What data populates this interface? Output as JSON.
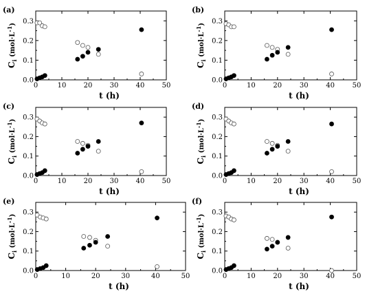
{
  "chart_data": [
    {
      "type": "scatter",
      "panel_label": "(a)",
      "xlabel": "t (h)",
      "ylabel_main": "C",
      "ylabel_sub": "i",
      "ylabel_unit": " (mol·L",
      "ylabel_exp": "-1",
      "ylabel_close": ")",
      "xlim": [
        0,
        50
      ],
      "ylim": [
        0,
        0.35
      ],
      "x_ticks": [
        "0",
        "10",
        "20",
        "30",
        "40",
        "50"
      ],
      "y_ticks": [
        "0.0",
        "0.1",
        "0.2",
        "0.3"
      ],
      "series": [
        {
          "marker": "open",
          "x": [
            0.5,
            1.5,
            2.5,
            3.5,
            16,
            18,
            20,
            24,
            40.5
          ],
          "y": [
            0.29,
            0.29,
            0.275,
            0.27,
            0.19,
            0.175,
            0.165,
            0.13,
            0.03
          ]
        },
        {
          "marker": "filled",
          "x": [
            0.5,
            1.5,
            2.5,
            3.5,
            16,
            18,
            20,
            24,
            40.5
          ],
          "y": [
            0.005,
            0.01,
            0.015,
            0.022,
            0.105,
            0.12,
            0.14,
            0.155,
            0.255
          ]
        }
      ]
    },
    {
      "type": "scatter",
      "panel_label": "(b)",
      "xlabel": "t (h)",
      "ylabel_main": "C",
      "ylabel_sub": "i",
      "ylabel_unit": " (mol·L",
      "ylabel_exp": "-1",
      "ylabel_close": ")",
      "xlim": [
        0,
        50
      ],
      "ylim": [
        0,
        0.35
      ],
      "x_ticks": [
        "0",
        "10",
        "20",
        "30",
        "40",
        "50"
      ],
      "y_ticks": [
        "0.0",
        "0.1",
        "0.2",
        "0.3"
      ],
      "series": [
        {
          "marker": "open",
          "x": [
            0.5,
            1.5,
            2.5,
            3.5,
            16,
            18,
            20,
            24,
            40.5
          ],
          "y": [
            0.285,
            0.28,
            0.27,
            0.27,
            0.175,
            0.165,
            0.155,
            0.13,
            0.03
          ]
        },
        {
          "marker": "filled",
          "x": [
            0.5,
            1.5,
            2.5,
            3.5,
            16,
            18,
            20,
            24,
            40.5
          ],
          "y": [
            0.005,
            0.01,
            0.015,
            0.022,
            0.105,
            0.125,
            0.14,
            0.165,
            0.255
          ]
        }
      ]
    },
    {
      "type": "scatter",
      "panel_label": "(c)",
      "xlabel": "t (h)",
      "ylabel_main": "C",
      "ylabel_sub": "i",
      "ylabel_unit": " (mol·L",
      "ylabel_exp": "-1",
      "ylabel_close": ")",
      "xlim": [
        0,
        50
      ],
      "ylim": [
        0,
        0.35
      ],
      "x_ticks": [
        "0",
        "10",
        "20",
        "30",
        "40",
        "50"
      ],
      "y_ticks": [
        "0.0",
        "0.1",
        "0.2",
        "0.3"
      ],
      "series": [
        {
          "marker": "open",
          "x": [
            0.5,
            1.5,
            2.5,
            3.5,
            16,
            18,
            20,
            24,
            40.5
          ],
          "y": [
            0.29,
            0.28,
            0.27,
            0.265,
            0.175,
            0.165,
            0.155,
            0.125,
            0.02
          ]
        },
        {
          "marker": "filled",
          "x": [
            0.5,
            1.5,
            2.5,
            3.5,
            16,
            18,
            20,
            24,
            40.5
          ],
          "y": [
            0.005,
            0.01,
            0.015,
            0.025,
            0.115,
            0.135,
            0.15,
            0.175,
            0.27
          ]
        }
      ]
    },
    {
      "type": "scatter",
      "panel_label": "(d)",
      "xlabel": "t (h)",
      "ylabel_main": "C",
      "ylabel_sub": "i",
      "ylabel_unit": " (mol·L",
      "ylabel_exp": "-1",
      "ylabel_close": ")",
      "xlim": [
        0,
        50
      ],
      "ylim": [
        0,
        0.35
      ],
      "x_ticks": [
        "0",
        "10",
        "20",
        "30",
        "40",
        "50"
      ],
      "y_ticks": [
        "0.0",
        "0.1",
        "0.2",
        "0.3"
      ],
      "series": [
        {
          "marker": "open",
          "x": [
            0.5,
            1.5,
            2.5,
            3.5,
            16,
            18,
            20,
            24,
            40.5
          ],
          "y": [
            0.29,
            0.28,
            0.27,
            0.265,
            0.175,
            0.165,
            0.155,
            0.125,
            0.02
          ]
        },
        {
          "marker": "filled",
          "x": [
            0.5,
            1.5,
            2.5,
            3.5,
            16,
            18,
            20,
            24,
            40.5
          ],
          "y": [
            0.005,
            0.01,
            0.015,
            0.025,
            0.115,
            0.135,
            0.15,
            0.175,
            0.265
          ]
        }
      ]
    },
    {
      "type": "scatter",
      "panel_label": "(e)",
      "xlabel": "t (h)",
      "ylabel_main": "C",
      "ylabel_sub": "i",
      "ylabel_unit": " (mol·L",
      "ylabel_exp": "-1",
      "ylabel_close": ")",
      "xlim": [
        0,
        50
      ],
      "ylim": [
        0,
        0.35
      ],
      "x_ticks": [
        "0",
        "10",
        "20",
        "30",
        "40",
        "50"
      ],
      "y_ticks": [
        "0.0",
        "0.1",
        "0.2",
        "0.3"
      ],
      "series": [
        {
          "marker": "open",
          "x": [
            0.5,
            1.5,
            2.5,
            3.5,
            16,
            18,
            20,
            24,
            40.5
          ],
          "y": [
            0.285,
            0.275,
            0.27,
            0.265,
            0.175,
            0.17,
            0.155,
            0.125,
            0.02
          ]
        },
        {
          "marker": "filled",
          "x": [
            0.5,
            1.5,
            2.5,
            3.5,
            16,
            18,
            20,
            24,
            40.5
          ],
          "y": [
            0.005,
            0.01,
            0.015,
            0.025,
            0.115,
            0.13,
            0.145,
            0.175,
            0.27
          ]
        }
      ]
    },
    {
      "type": "scatter",
      "panel_label": "(f)",
      "xlabel": "t (h)",
      "ylabel_main": "C",
      "ylabel_sub": "i",
      "ylabel_unit": " (mol·L",
      "ylabel_exp": "-1",
      "ylabel_close": ")",
      "xlim": [
        0,
        50
      ],
      "ylim": [
        0,
        0.35
      ],
      "x_ticks": [
        "0",
        "10",
        "20",
        "30",
        "40",
        "50"
      ],
      "y_ticks": [
        "0.0",
        "0.1",
        "0.2",
        "0.3"
      ],
      "series": [
        {
          "marker": "open",
          "x": [
            0.5,
            1.5,
            2.5,
            3.5,
            16,
            18,
            20,
            24,
            40.5
          ],
          "y": [
            0.28,
            0.275,
            0.265,
            0.26,
            0.165,
            0.16,
            0.145,
            0.115,
            0.0
          ]
        },
        {
          "marker": "filled",
          "x": [
            0.5,
            1.5,
            2.5,
            3.5,
            16,
            18,
            20,
            24,
            40.5
          ],
          "y": [
            0.005,
            0.01,
            0.015,
            0.025,
            0.11,
            0.125,
            0.145,
            0.17,
            0.275
          ]
        }
      ]
    }
  ]
}
